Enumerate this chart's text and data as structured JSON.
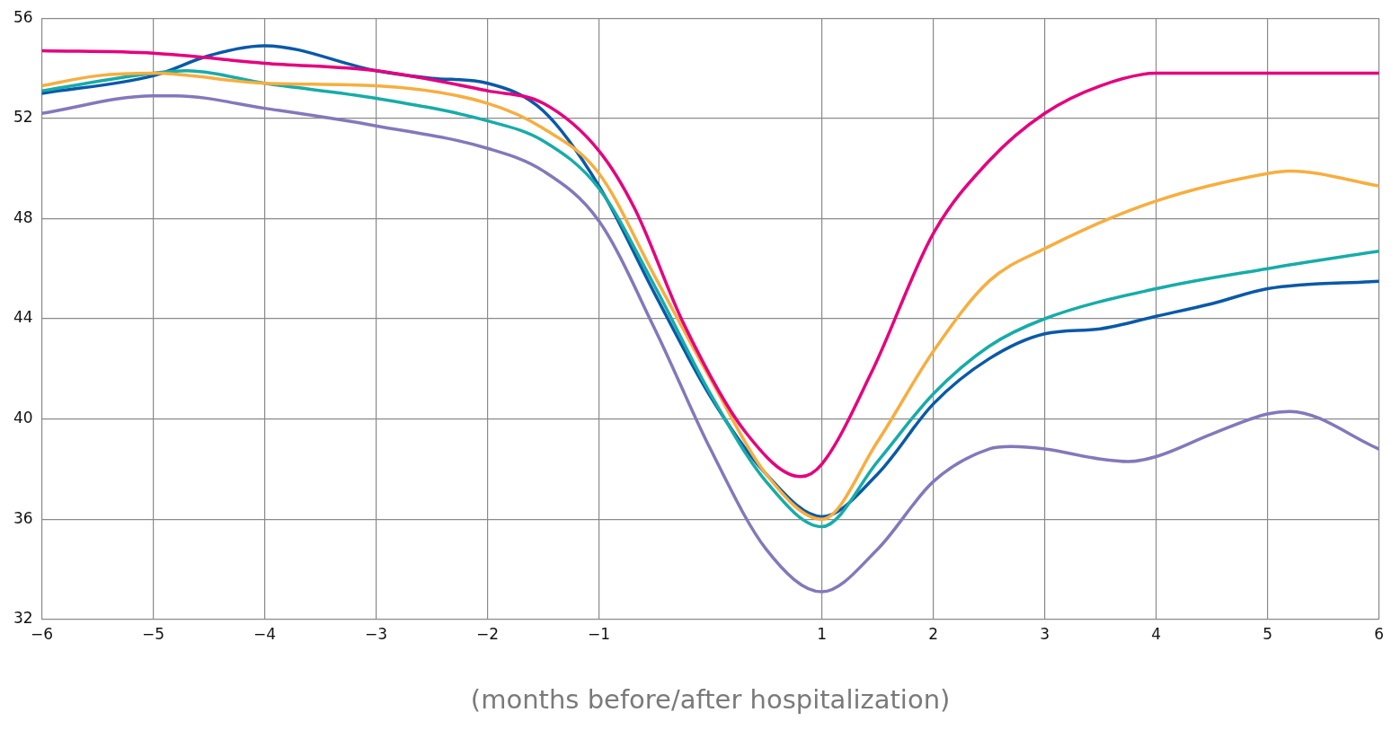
{
  "chart_data": {
    "type": "line",
    "xlabel": "(months before/after hospitalization)",
    "xlim": [
      -6,
      6
    ],
    "xticks": [
      -6,
      -5,
      -4,
      -3,
      -2,
      -1,
      1,
      2,
      3,
      4,
      5,
      6
    ],
    "ylim": [
      32,
      56
    ],
    "yticks": [
      32,
      36,
      40,
      44,
      48,
      52,
      56
    ],
    "grid": true,
    "legend": false,
    "marker": "none",
    "line_style": "solid",
    "series": [
      {
        "color": "#e5007e",
        "x": [
          -6,
          -5,
          -4,
          -3,
          -2,
          -1.5,
          -1,
          -0.68,
          -0.24,
          0.31,
          0.81,
          1,
          1.45,
          2,
          2.5,
          3,
          3.5,
          4,
          5,
          6
        ],
        "values": [
          54.7,
          54.6,
          54.2,
          53.9,
          53.1,
          52.6,
          50.7,
          48.4,
          43.8,
          39.5,
          37.7,
          38.2,
          41.9,
          47.4,
          50.3,
          52.2,
          53.3,
          53.8,
          53.8,
          53.8
        ]
      },
      {
        "color": "#f7ae3f",
        "x": [
          -6,
          -5.5,
          -5,
          -4,
          -3,
          -2,
          -1.5,
          -1,
          -0.5,
          0,
          0.5,
          1,
          1.5,
          2,
          2.5,
          3,
          4,
          5,
          5.2,
          6
        ],
        "values": [
          53.3,
          53.7,
          53.8,
          53.4,
          53.3,
          52.6,
          51.6,
          49.8,
          45.7,
          41.6,
          37.8,
          36.0,
          39.1,
          42.7,
          45.5,
          46.8,
          48.7,
          49.8,
          49.9,
          49.3
        ]
      },
      {
        "color": "#17aca8",
        "x": [
          -6,
          -5,
          -4.7,
          -4,
          -3,
          -2,
          -1.5,
          -1,
          -0.5,
          0,
          0.5,
          1,
          1.5,
          2,
          2.5,
          3,
          4,
          5,
          6
        ],
        "values": [
          53.1,
          53.8,
          53.9,
          53.4,
          52.8,
          51.9,
          51.1,
          49.2,
          45.3,
          41.0,
          37.5,
          35.7,
          38.3,
          41.0,
          42.9,
          44.0,
          45.2,
          46.0,
          46.7
        ]
      },
      {
        "color": "#0a59a8",
        "x": [
          -6,
          -5,
          -4.5,
          -4,
          -3,
          -2.5,
          -2,
          -1.5,
          -1,
          -0.5,
          0,
          0.5,
          1,
          1.5,
          2,
          2.5,
          3,
          3.5,
          4,
          4.5,
          5,
          6
        ],
        "values": [
          53.0,
          53.7,
          54.5,
          54.9,
          53.9,
          53.6,
          53.4,
          52.3,
          49.3,
          45.0,
          40.9,
          37.8,
          36.1,
          37.8,
          40.6,
          42.4,
          43.4,
          43.6,
          44.1,
          44.6,
          45.2,
          45.5
        ]
      },
      {
        "color": "#8478bb",
        "x": [
          -6,
          -5,
          -4.8,
          -4,
          -3,
          -2,
          -1.5,
          -1,
          -0.5,
          0,
          0.5,
          1,
          1.5,
          2,
          2.5,
          2.7,
          3,
          3.5,
          3.75,
          4,
          4.5,
          5,
          5.2,
          6
        ],
        "values": [
          52.2,
          52.9,
          52.9,
          52.4,
          51.7,
          50.8,
          49.9,
          47.9,
          43.6,
          38.8,
          34.8,
          33.1,
          34.8,
          37.5,
          38.8,
          38.9,
          38.8,
          38.4,
          38.3,
          38.5,
          39.4,
          40.2,
          40.3,
          38.8
        ]
      }
    ]
  }
}
